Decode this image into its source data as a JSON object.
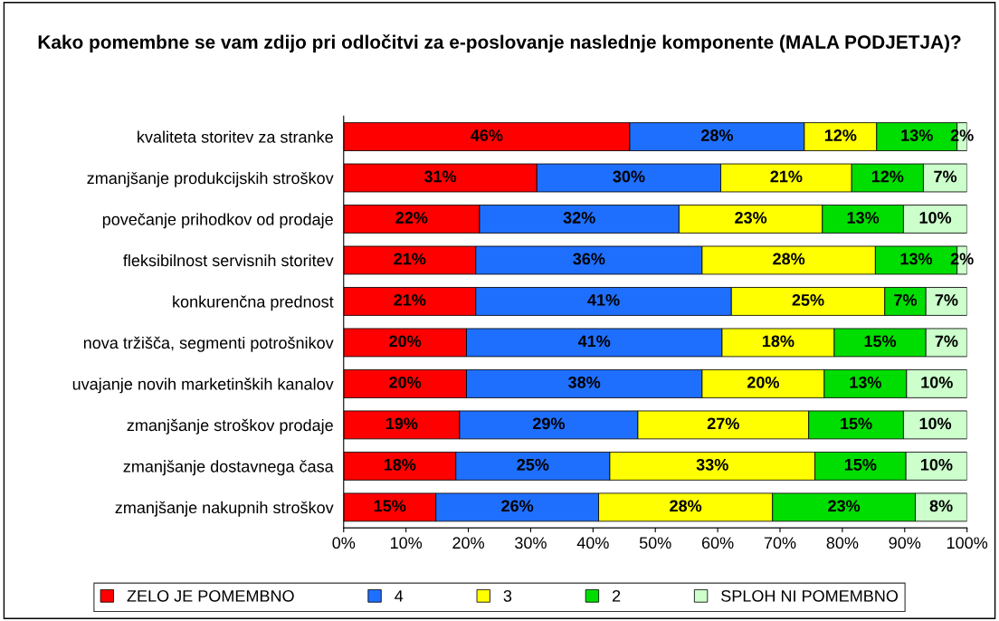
{
  "chart_data": {
    "type": "bar",
    "orientation": "horizontal",
    "stacked": true,
    "title": "Kako pomembne se vam zdijo pri odločitvi za e-poslovanje naslednje komponente (MALA PODJETJA)?",
    "categories": [
      "kvaliteta storitev za stranke",
      "zmanjšanje produkcijskih stroškov",
      "povečanje prihodkov od prodaje",
      "fleksibilnost servisnih storitev",
      "konkurenčna prednost",
      "nova tržišča, segmenti potrošnikov",
      "uvajanje novih marketinških kanalov",
      "zmanjšanje stroškov prodaje",
      "zmanjšanje dostavnega časa",
      "zmanjšanje nakupnih stroškov"
    ],
    "series": [
      {
        "name": "ZELO JE POMEMBNO",
        "color": "#ff0000",
        "values": [
          45.9,
          31.0,
          21.8,
          21.2,
          21.2,
          19.7,
          19.7,
          18.6,
          18.0,
          14.8
        ],
        "value_labels": [
          "46%",
          "31%",
          "22%",
          "21%",
          "21%",
          "20%",
          "20%",
          "19%",
          "18%",
          "15%"
        ]
      },
      {
        "name": "4",
        "color": "#1f6fff",
        "values": [
          28.0,
          29.5,
          32.0,
          36.3,
          41.0,
          41.0,
          37.8,
          28.6,
          24.7,
          26.1
        ],
        "value_labels": [
          "28%",
          "30%",
          "32%",
          "36%",
          "41%",
          "41%",
          "38%",
          "29%",
          "25%",
          "26%"
        ]
      },
      {
        "name": "3",
        "color": "#ffff00",
        "values": [
          11.6,
          21.0,
          23.0,
          27.8,
          24.6,
          18.0,
          19.6,
          27.4,
          32.9,
          27.9
        ],
        "value_labels": [
          "12%",
          "21%",
          "23%",
          "28%",
          "25%",
          "18%",
          "20%",
          "27%",
          "33%",
          "28%"
        ]
      },
      {
        "name": "2",
        "color": "#00dd00",
        "values": [
          12.9,
          11.5,
          13.0,
          13.1,
          6.6,
          14.7,
          13.2,
          15.2,
          14.6,
          22.9
        ],
        "value_labels": [
          "13%",
          "12%",
          "13%",
          "13%",
          "7%",
          "15%",
          "13%",
          "15%",
          "15%",
          "23%"
        ]
      },
      {
        "name": "SPLOH NI POMEMBNO",
        "color": "#ccffcc",
        "values": [
          1.6,
          7.0,
          10.2,
          1.6,
          6.6,
          6.6,
          9.7,
          10.2,
          9.8,
          8.3
        ],
        "value_labels": [
          "2%",
          "7%",
          "10%",
          "2%",
          "7%",
          "7%",
          "10%",
          "10%",
          "10%",
          "8%"
        ]
      }
    ],
    "xlim": [
      0,
      100
    ],
    "xticks": [
      {
        "value": 0,
        "label": "0%"
      },
      {
        "value": 10,
        "label": "10%"
      },
      {
        "value": 20,
        "label": "20%"
      },
      {
        "value": 30,
        "label": "30%"
      },
      {
        "value": 40,
        "label": "40%"
      },
      {
        "value": 50,
        "label": "50%"
      },
      {
        "value": 60,
        "label": "60%"
      },
      {
        "value": 70,
        "label": "70%"
      },
      {
        "value": 80,
        "label": "80%"
      },
      {
        "value": 90,
        "label": "90%"
      },
      {
        "value": 100,
        "label": "100%"
      }
    ],
    "legend": "bottom",
    "grid": false
  }
}
